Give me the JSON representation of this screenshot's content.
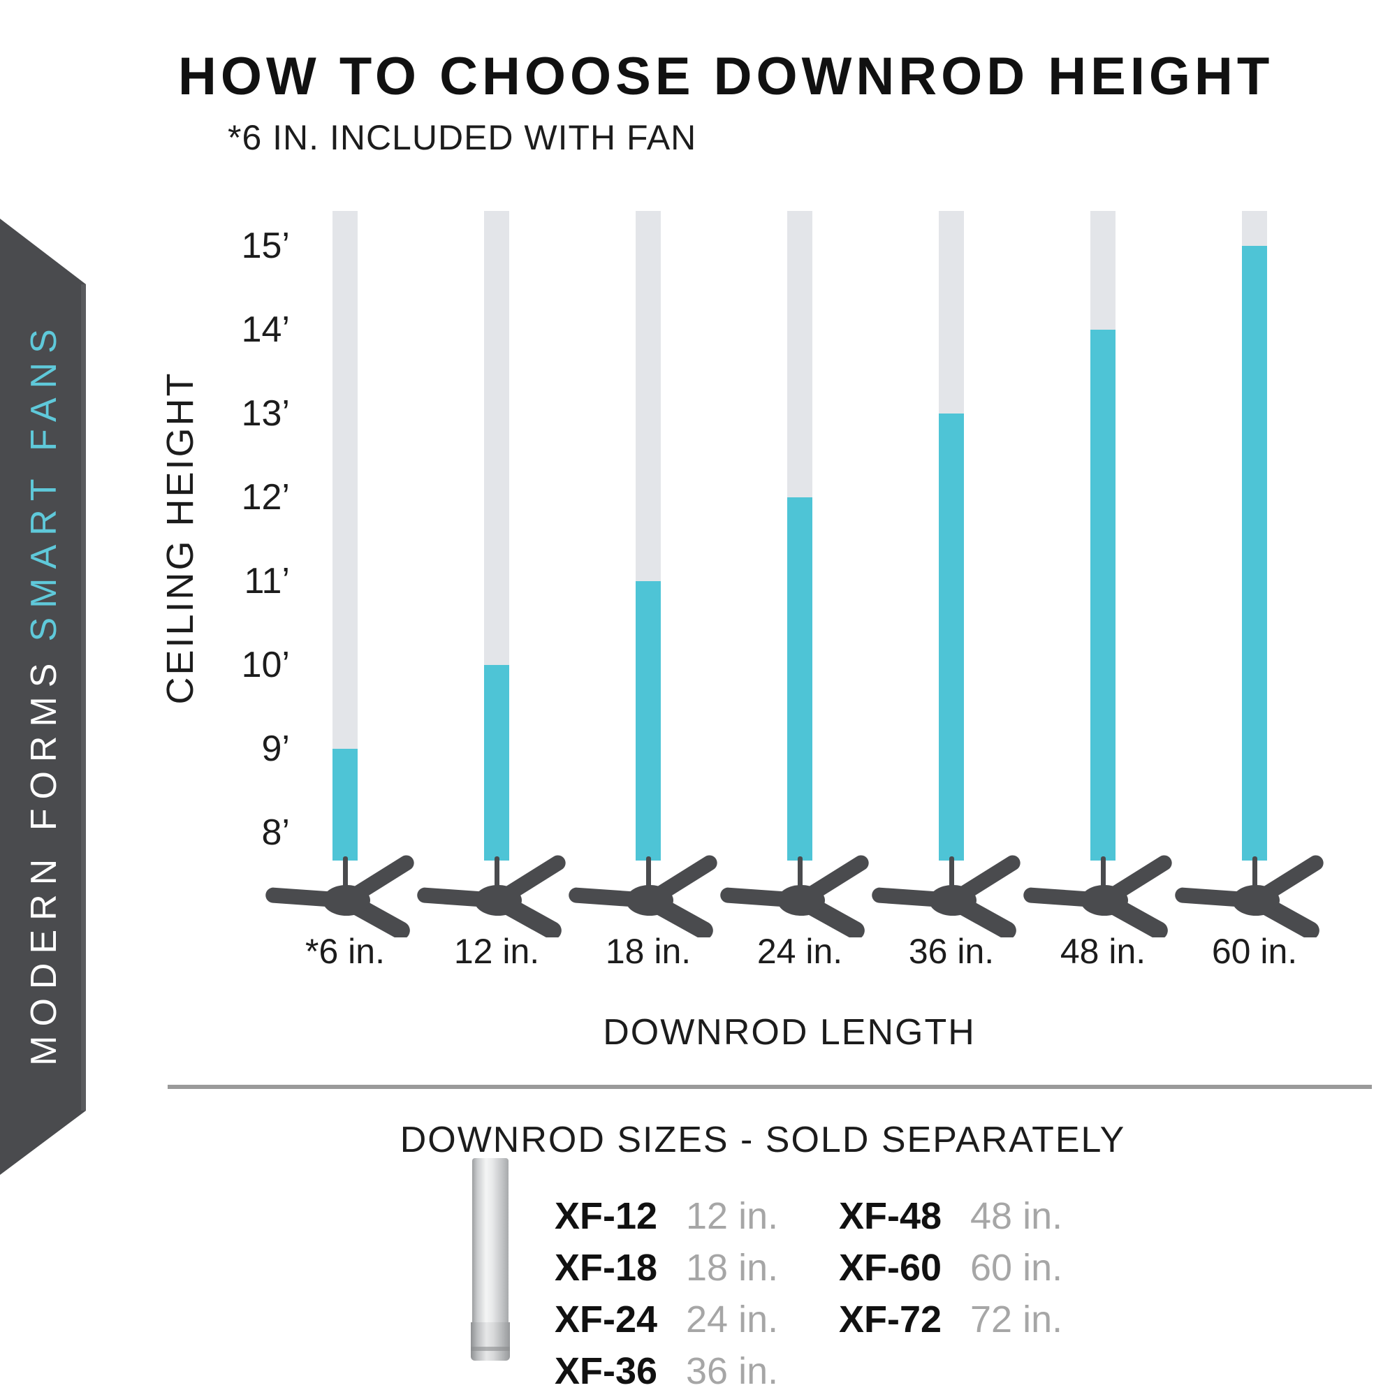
{
  "page": {
    "title": "HOW TO CHOOSE DOWNROD HEIGHT",
    "subtitle": "*6 IN. INCLUDED WITH FAN"
  },
  "banner": {
    "text_primary": "MODERN FORMS",
    "text_accent": "SMART FANS",
    "bg_color": "#4A4B4E",
    "primary_color": "#FFFFFF",
    "accent_color": "#5FC9DA"
  },
  "chart_data": {
    "type": "bar",
    "title": "HOW TO CHOOSE DOWNROD HEIGHT",
    "xlabel": "DOWNROD LENGTH",
    "ylabel": "CEILING HEIGHT",
    "categories": [
      "*6 in.",
      "12 in.",
      "18 in.",
      "24 in.",
      "36 in.",
      "48 in.",
      "60 in."
    ],
    "values": [
      9,
      10,
      11,
      12,
      13,
      14,
      15
    ],
    "value_unit": "ft ceiling height",
    "y_ticks": [
      "15’",
      "14’",
      "13’",
      "12’",
      "11’",
      "10’",
      "9’",
      "8’"
    ],
    "ylim": [
      8,
      15
    ],
    "grid": false,
    "legend": false,
    "bar_color": "#4EC4D6",
    "track_color": "#E3E5E9",
    "fan_color": "#4A4B4E",
    "note": "*6 IN. INCLUDED WITH FAN"
  },
  "downrod_table": {
    "heading": "DOWNROD SIZES - SOLD SEPARATELY",
    "columns": [
      {
        "rows": [
          {
            "model": "XF-12",
            "size": "12 in."
          },
          {
            "model": "XF-18",
            "size": "18 in."
          },
          {
            "model": "XF-24",
            "size": "24 in."
          },
          {
            "model": "XF-36",
            "size": "36 in."
          }
        ]
      },
      {
        "rows": [
          {
            "model": "XF-48",
            "size": "48 in."
          },
          {
            "model": "XF-60",
            "size": "60 in."
          },
          {
            "model": "XF-72",
            "size": "72 in."
          }
        ]
      }
    ]
  }
}
